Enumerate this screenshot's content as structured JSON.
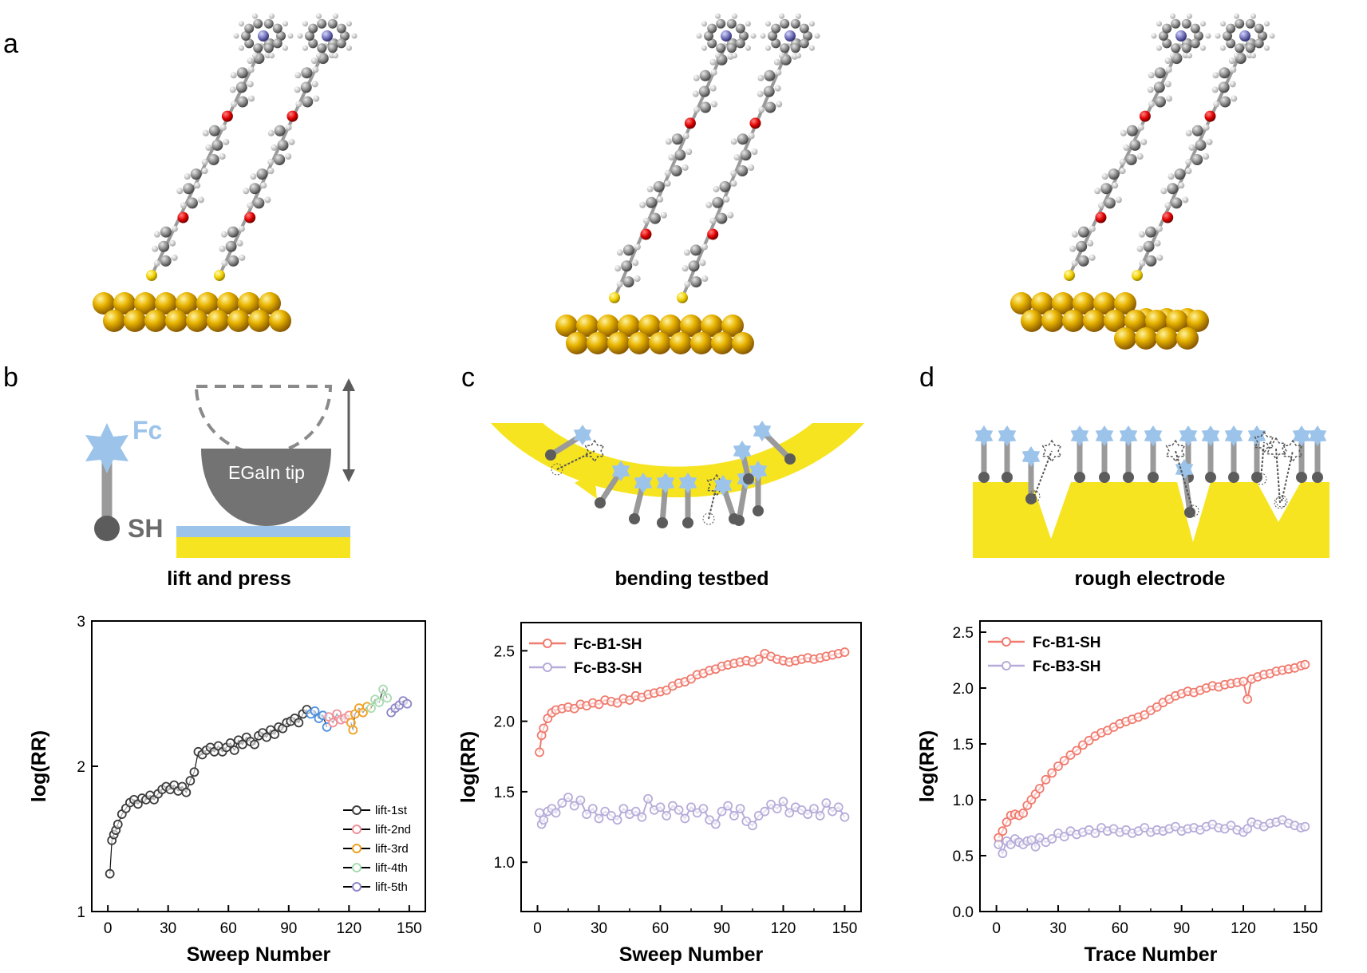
{
  "panels": {
    "a": "a",
    "b": "b",
    "c": "c",
    "d": "d"
  },
  "illustrations": {
    "b_fc_label": "Fc",
    "b_sh_label": "SH",
    "b_tip_label": "EGaIn tip",
    "b_caption": "lift and press",
    "c_caption": "bending testbed",
    "d_caption": "rough electrode"
  },
  "colors": {
    "gold_sphere": "#d9a000",
    "gold_substrate": "#f7e421",
    "fc_blue": "#9cc3ea",
    "linker_gray": "#9a9a9a",
    "fc_b1_red": "#f07a6e",
    "fc_b3_purple": "#b7acd9",
    "lift1": "#3c3c3c",
    "lift2": "#f0909a",
    "lift3": "#f0a020",
    "lift4": "#a8dcb0",
    "lift5": "#8d86c9",
    "sweep_blue": "#4a8fe0"
  },
  "chart_data": [
    {
      "id": "lift",
      "type": "scatter",
      "xlabel": "Sweep Number",
      "ylabel": "log(RR)",
      "xlim": [
        -8,
        158
      ],
      "ylim": [
        1,
        3
      ],
      "xticks": [
        0,
        30,
        60,
        90,
        120,
        150
      ],
      "yticks": [
        1,
        2,
        3
      ],
      "legend_position": "bottom-right",
      "series": [
        {
          "name": "lift-1st",
          "color": "#3c3c3c",
          "x": [
            1,
            2,
            3,
            4,
            5,
            7,
            9,
            11,
            13,
            15,
            17,
            19,
            21,
            23,
            25,
            27,
            29,
            31,
            33,
            35,
            37,
            39,
            41,
            43,
            45,
            47,
            49,
            51,
            53,
            55,
            57,
            59,
            61,
            63,
            65,
            67,
            69,
            71,
            73,
            75,
            77,
            79,
            81,
            83,
            85,
            87,
            89,
            91,
            93,
            95,
            97,
            99
          ],
          "y": [
            1.26,
            1.49,
            1.53,
            1.56,
            1.6,
            1.67,
            1.71,
            1.75,
            1.77,
            1.74,
            1.78,
            1.77,
            1.8,
            1.77,
            1.81,
            1.84,
            1.86,
            1.84,
            1.87,
            1.83,
            1.86,
            1.82,
            1.9,
            1.96,
            2.1,
            2.08,
            2.11,
            2.13,
            2.1,
            2.14,
            2.1,
            2.13,
            2.16,
            2.11,
            2.18,
            2.15,
            2.2,
            2.17,
            2.15,
            2.21,
            2.23,
            2.2,
            2.25,
            2.22,
            2.27,
            2.26,
            2.3,
            2.31,
            2.33,
            2.3,
            2.36,
            2.39
          ]
        },
        {
          "name": "",
          "color": "#4a8fe0",
          "x": [
            101,
            103,
            105,
            107,
            109
          ],
          "y": [
            2.36,
            2.38,
            2.33,
            2.35,
            2.27
          ]
        },
        {
          "name": "lift-2nd",
          "color": "#f0909a",
          "x": [
            110,
            112,
            114,
            116,
            118,
            120
          ],
          "y": [
            2.34,
            2.3,
            2.36,
            2.32,
            2.33,
            2.35
          ]
        },
        {
          "name": "lift-3rd",
          "color": "#f0a020",
          "x": [
            121,
            122,
            123,
            125,
            127,
            129
          ],
          "y": [
            2.3,
            2.25,
            2.36,
            2.4,
            2.37,
            2.41
          ]
        },
        {
          "name": "lift-4th",
          "color": "#a8dcb0",
          "x": [
            131,
            133,
            135,
            137,
            139
          ],
          "y": [
            2.4,
            2.46,
            2.44,
            2.53,
            2.47
          ]
        },
        {
          "name": "lift-5th",
          "color": "#8d86c9",
          "x": [
            141,
            143,
            145,
            147,
            149
          ],
          "y": [
            2.37,
            2.4,
            2.42,
            2.45,
            2.43
          ]
        }
      ]
    },
    {
      "id": "bending",
      "type": "line",
      "xlabel": "Sweep Number",
      "ylabel": "log(RR)",
      "xlim": [
        -8,
        158
      ],
      "ylim": [
        0.65,
        2.7
      ],
      "xticks": [
        0,
        30,
        60,
        90,
        120,
        150
      ],
      "yticks": [
        1.0,
        1.5,
        2.0,
        2.5
      ],
      "ytick_format": 1,
      "legend_position": "top-left",
      "series": [
        {
          "name": "Fc-B1-SH",
          "color": "#f07a6e",
          "x": [
            1,
            2,
            3,
            5,
            7,
            9,
            12,
            15,
            18,
            21,
            24,
            27,
            30,
            33,
            36,
            39,
            42,
            45,
            48,
            51,
            54,
            57,
            60,
            63,
            66,
            69,
            72,
            75,
            78,
            81,
            84,
            87,
            90,
            93,
            96,
            99,
            102,
            105,
            108,
            111,
            114,
            117,
            120,
            123,
            126,
            129,
            132,
            135,
            138,
            141,
            144,
            147,
            150
          ],
          "y": [
            1.78,
            1.9,
            1.95,
            2.02,
            2.06,
            2.08,
            2.09,
            2.1,
            2.09,
            2.12,
            2.11,
            2.13,
            2.12,
            2.15,
            2.14,
            2.13,
            2.16,
            2.15,
            2.18,
            2.17,
            2.19,
            2.2,
            2.21,
            2.22,
            2.25,
            2.27,
            2.28,
            2.3,
            2.33,
            2.34,
            2.36,
            2.37,
            2.39,
            2.4,
            2.41,
            2.42,
            2.43,
            2.42,
            2.44,
            2.48,
            2.46,
            2.44,
            2.43,
            2.42,
            2.43,
            2.44,
            2.45,
            2.44,
            2.45,
            2.46,
            2.47,
            2.48,
            2.49
          ]
        },
        {
          "name": "Fc-B3-SH",
          "color": "#b7acd9",
          "x": [
            1,
            2,
            3,
            5,
            7,
            9,
            12,
            15,
            18,
            21,
            24,
            27,
            30,
            33,
            36,
            39,
            42,
            45,
            48,
            51,
            54,
            57,
            60,
            63,
            66,
            69,
            72,
            75,
            78,
            81,
            84,
            87,
            90,
            93,
            96,
            99,
            102,
            105,
            108,
            111,
            114,
            117,
            120,
            123,
            126,
            129,
            132,
            135,
            138,
            141,
            144,
            147,
            150
          ],
          "y": [
            1.35,
            1.27,
            1.3,
            1.36,
            1.38,
            1.35,
            1.42,
            1.46,
            1.4,
            1.44,
            1.34,
            1.38,
            1.31,
            1.36,
            1.33,
            1.3,
            1.38,
            1.34,
            1.36,
            1.32,
            1.45,
            1.37,
            1.39,
            1.33,
            1.4,
            1.37,
            1.31,
            1.39,
            1.35,
            1.38,
            1.3,
            1.27,
            1.36,
            1.4,
            1.33,
            1.38,
            1.29,
            1.26,
            1.33,
            1.36,
            1.41,
            1.38,
            1.43,
            1.35,
            1.39,
            1.37,
            1.34,
            1.38,
            1.33,
            1.42,
            1.36,
            1.39,
            1.32
          ]
        }
      ]
    },
    {
      "id": "rough",
      "type": "line",
      "xlabel": "Trace Number",
      "ylabel": "log(RR)",
      "xlim": [
        -8,
        158
      ],
      "ylim": [
        0,
        2.6
      ],
      "xticks": [
        0,
        30,
        60,
        90,
        120,
        150
      ],
      "yticks": [
        0.0,
        0.5,
        1.0,
        1.5,
        2.0,
        2.5
      ],
      "ytick_format": 1,
      "legend_position": "top-left",
      "series": [
        {
          "name": "Fc-B1-SH",
          "color": "#f07a6e",
          "x": [
            1,
            3,
            5,
            7,
            9,
            11,
            13,
            15,
            17,
            19,
            21,
            24,
            27,
            30,
            33,
            36,
            39,
            42,
            45,
            48,
            51,
            54,
            57,
            60,
            63,
            66,
            69,
            72,
            75,
            78,
            81,
            84,
            87,
            90,
            93,
            96,
            99,
            102,
            105,
            108,
            111,
            114,
            117,
            120,
            122,
            124,
            127,
            130,
            133,
            136,
            139,
            142,
            145,
            148,
            150
          ],
          "y": [
            0.66,
            0.72,
            0.8,
            0.86,
            0.87,
            0.86,
            0.88,
            0.95,
            1.0,
            1.05,
            1.1,
            1.18,
            1.24,
            1.3,
            1.35,
            1.4,
            1.44,
            1.49,
            1.53,
            1.57,
            1.6,
            1.62,
            1.65,
            1.68,
            1.7,
            1.72,
            1.74,
            1.76,
            1.8,
            1.83,
            1.87,
            1.9,
            1.93,
            1.95,
            1.97,
            1.96,
            1.98,
            2.0,
            2.02,
            2.01,
            2.03,
            2.04,
            2.05,
            2.06,
            1.9,
            2.08,
            2.1,
            2.12,
            2.13,
            2.15,
            2.16,
            2.17,
            2.18,
            2.2,
            2.21
          ]
        },
        {
          "name": "Fc-B3-SH",
          "color": "#b7acd9",
          "x": [
            1,
            3,
            5,
            7,
            9,
            11,
            13,
            15,
            17,
            19,
            21,
            24,
            27,
            30,
            33,
            36,
            39,
            42,
            45,
            48,
            51,
            54,
            57,
            60,
            63,
            66,
            69,
            72,
            75,
            78,
            81,
            84,
            87,
            90,
            93,
            96,
            99,
            102,
            105,
            108,
            111,
            114,
            117,
            120,
            122,
            124,
            127,
            130,
            133,
            136,
            139,
            142,
            145,
            148,
            150
          ],
          "y": [
            0.6,
            0.52,
            0.63,
            0.6,
            0.65,
            0.62,
            0.6,
            0.63,
            0.64,
            0.58,
            0.66,
            0.62,
            0.65,
            0.7,
            0.67,
            0.72,
            0.69,
            0.71,
            0.73,
            0.7,
            0.75,
            0.72,
            0.74,
            0.71,
            0.73,
            0.7,
            0.72,
            0.75,
            0.71,
            0.73,
            0.72,
            0.74,
            0.76,
            0.72,
            0.74,
            0.75,
            0.73,
            0.76,
            0.78,
            0.75,
            0.74,
            0.77,
            0.73,
            0.71,
            0.74,
            0.8,
            0.78,
            0.76,
            0.79,
            0.8,
            0.82,
            0.79,
            0.77,
            0.75,
            0.76
          ]
        }
      ]
    }
  ]
}
